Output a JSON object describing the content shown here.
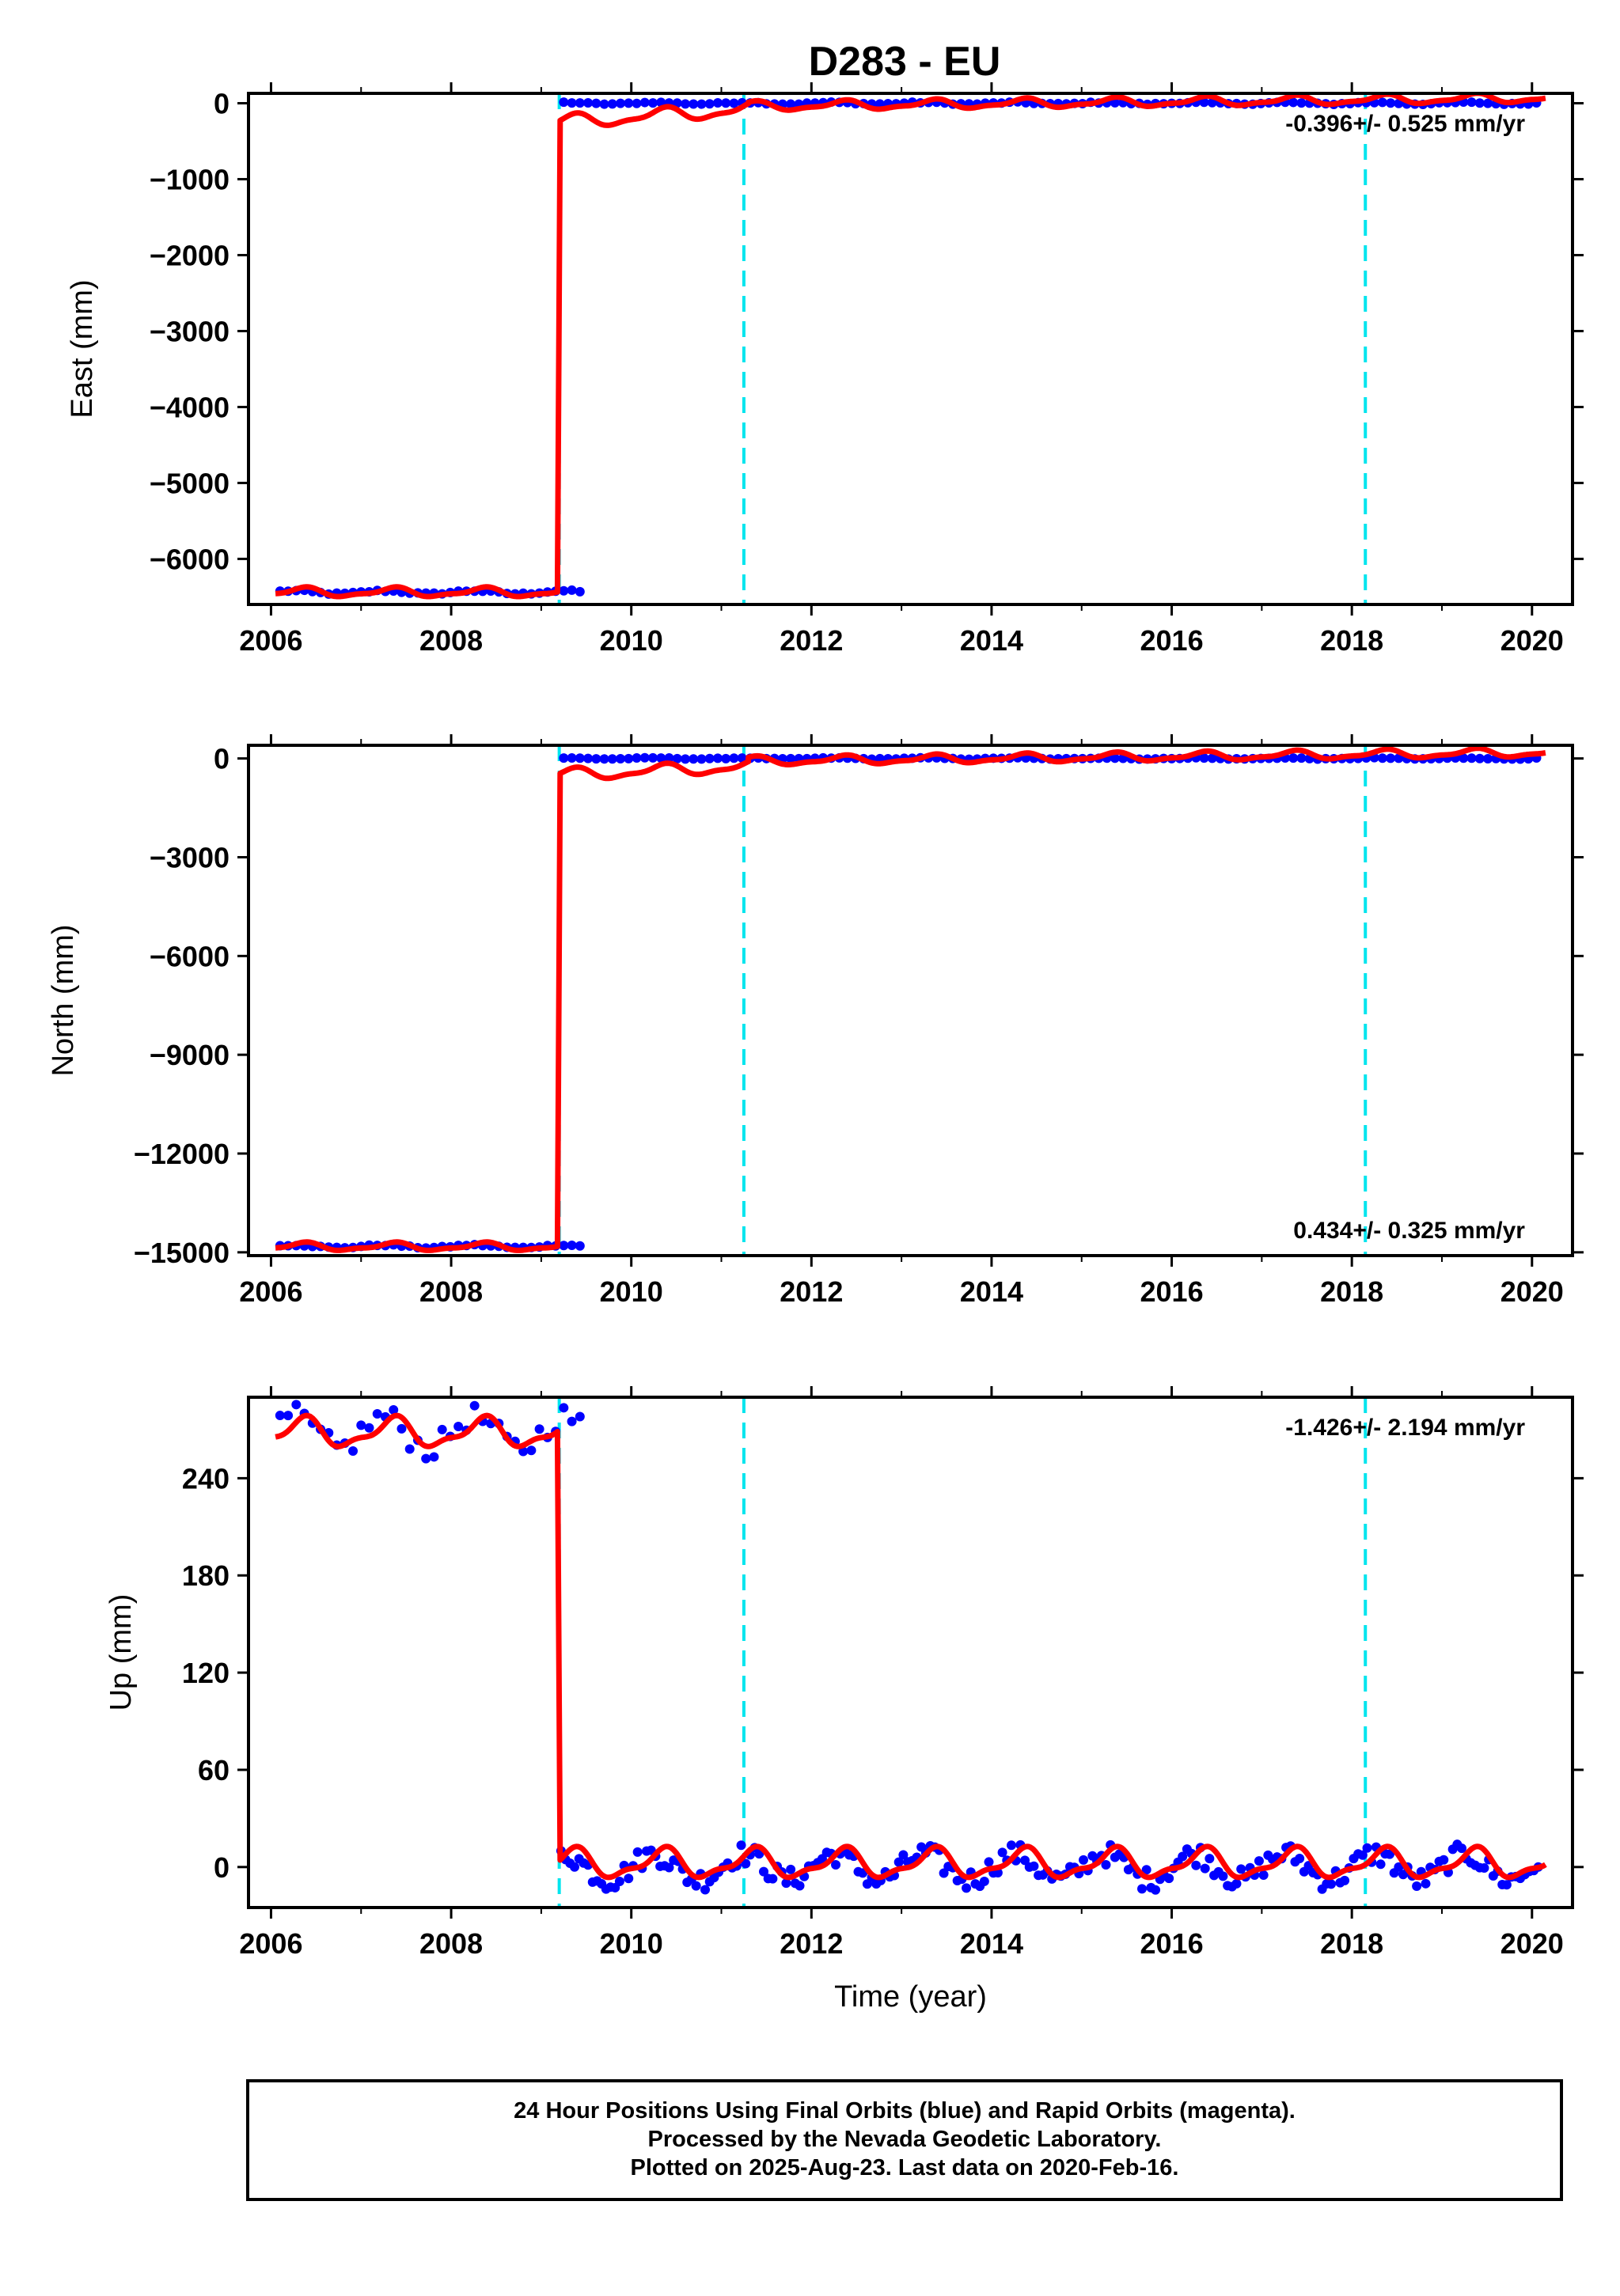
{
  "title": "D283 - EU",
  "colors": {
    "final_orbits": "#0000ff",
    "model": "#ff0000",
    "events": "#00e5ee",
    "frame": "#000000"
  },
  "chart_data": [
    {
      "type": "scatter",
      "panel": "east",
      "ylabel": "East (mm)",
      "xlabel": "",
      "xlim": [
        2005.75,
        2020.45
      ],
      "ylim": [
        -6600,
        130
      ],
      "xticks": [
        2006,
        2008,
        2010,
        2012,
        2014,
        2016,
        2018,
        2020
      ],
      "yticks": [
        0,
        -1000,
        -2000,
        -3000,
        -4000,
        -5000,
        -6000
      ],
      "ytick_labels": [
        "0",
        "−1000",
        "−2000",
        "−3000",
        "−4000",
        "−5000",
        "−6000"
      ],
      "rate_text": "-0.396+/- 0.525 mm/yr",
      "rate_position": "top-right",
      "grid": false,
      "event_lines": [
        2009.2,
        2011.25,
        2018.15
      ],
      "series": [
        {
          "kind": "points",
          "segments": [
            {
              "x_start": 2006.1,
              "x_end": 2009.45,
              "step": 0.09,
              "base": -6440,
              "amp": 20,
              "noise": 12
            },
            {
              "x_start": 2009.25,
              "x_end": 2020.1,
              "step": 0.09,
              "base": 0,
              "amp": 10,
              "noise": 8
            }
          ]
        },
        {
          "kind": "model",
          "segments": [
            {
              "x_start": 2006.05,
              "x_end": 2009.18,
              "base": -6440,
              "amp": 60
            },
            {
              "x_start": 2009.21,
              "x_end": 2011.3,
              "base": -250,
              "amp": 90,
              "rise_to": -80
            },
            {
              "x_start": 2011.3,
              "x_end": 2020.15,
              "base": -40,
              "amp": 60,
              "rise_to": 70
            }
          ],
          "jump_at": 2009.2
        }
      ]
    },
    {
      "type": "scatter",
      "panel": "north",
      "ylabel": "North (mm)",
      "xlabel": "",
      "xlim": [
        2005.75,
        2020.45
      ],
      "ylim": [
        -15100,
        400
      ],
      "xticks": [
        2006,
        2008,
        2010,
        2012,
        2014,
        2016,
        2018,
        2020
      ],
      "yticks": [
        0,
        -3000,
        -6000,
        -9000,
        -12000,
        -15000
      ],
      "ytick_labels": [
        "0",
        "−3000",
        "−6000",
        "−9000",
        "−12000",
        "−15000"
      ],
      "rate_text": "0.434+/- 0.325 mm/yr",
      "rate_position": "bottom-right",
      "grid": false,
      "event_lines": [
        2009.2,
        2011.25,
        2018.15
      ],
      "series": [
        {
          "kind": "points",
          "segments": [
            {
              "x_start": 2006.1,
              "x_end": 2009.45,
              "step": 0.09,
              "base": -14820,
              "amp": 40,
              "noise": 20
            },
            {
              "x_start": 2009.25,
              "x_end": 2020.1,
              "step": 0.09,
              "base": 0,
              "amp": 15,
              "noise": 10
            }
          ]
        },
        {
          "kind": "model",
          "segments": [
            {
              "x_start": 2006.05,
              "x_end": 2009.18,
              "base": -14830,
              "amp": 120
            },
            {
              "x_start": 2009.21,
              "x_end": 2011.3,
              "base": -500,
              "amp": 180,
              "rise_to": -250
            },
            {
              "x_start": 2011.3,
              "x_end": 2020.15,
              "base": -80,
              "amp": 130,
              "rise_to": 180
            }
          ],
          "jump_at": 2009.2
        }
      ]
    },
    {
      "type": "scatter",
      "panel": "up",
      "ylabel": "Up (mm)",
      "xlabel": "Time (year)",
      "xlim": [
        2005.75,
        2020.45
      ],
      "ylim": [
        -25,
        290
      ],
      "xticks": [
        2006,
        2008,
        2010,
        2012,
        2014,
        2016,
        2018,
        2020
      ],
      "yticks": [
        0,
        60,
        120,
        180,
        240
      ],
      "ytick_labels": [
        "0",
        "60",
        "120",
        "180",
        "240"
      ],
      "rate_text": "-1.426+/- 2.194 mm/yr",
      "rate_position": "top-right",
      "grid": false,
      "event_lines": [
        2009.2,
        2011.25,
        2018.15
      ],
      "series": [
        {
          "kind": "points",
          "segments": [
            {
              "x_start": 2006.1,
              "x_end": 2009.45,
              "step": 0.09,
              "base": 268,
              "amp": 10,
              "noise": 8
            },
            {
              "x_start": 2009.22,
              "x_end": 2020.1,
              "step": 0.05,
              "base": 0,
              "amp": 8,
              "noise": 7
            }
          ]
        },
        {
          "kind": "model",
          "segments": [
            {
              "x_start": 2006.05,
              "x_end": 2009.18,
              "base": 268,
              "amp": 9
            },
            {
              "x_start": 2009.21,
              "x_end": 2020.15,
              "base": 2,
              "amp": 9
            }
          ],
          "jump_at": 2009.2
        }
      ]
    }
  ],
  "footer": {
    "line1": "24 Hour Positions Using Final Orbits (blue) and Rapid Orbits (magenta).",
    "line2": "Processed by the Nevada Geodetic Laboratory.",
    "line3": "Plotted on 2025-Aug-23. Last data on 2020-Feb-16."
  }
}
